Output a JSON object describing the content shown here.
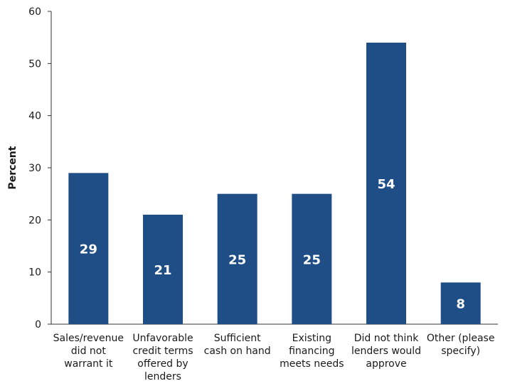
{
  "chart_data": {
    "type": "bar",
    "ylabel": "Percent",
    "xlabel": "",
    "ylim": [
      0,
      60
    ],
    "yticks": [
      0,
      10,
      20,
      30,
      40,
      50,
      60
    ],
    "grid": false,
    "bar_color": "#1F4E87",
    "categories": [
      [
        "Sales/revenue",
        "did not",
        "warrant it"
      ],
      [
        "Unfavorable",
        "credit terms",
        "offered by",
        "lenders"
      ],
      [
        "Sufficient",
        "cash on hand"
      ],
      [
        "Existing",
        "financing",
        "meets needs"
      ],
      [
        "Did not think",
        "lenders would",
        "approve"
      ],
      [
        "Other (please",
        "specify)"
      ]
    ],
    "values": [
      29,
      21,
      25,
      25,
      54,
      8
    ],
    "data_labels": [
      "29",
      "21",
      "25",
      "25",
      "54",
      "8"
    ]
  }
}
